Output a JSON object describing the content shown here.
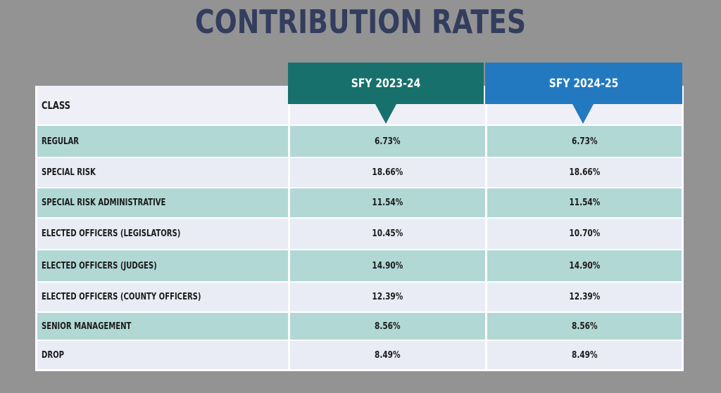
{
  "title": "CONTRIBUTION RATES",
  "columns": {
    "class_header": "CLASS",
    "col1": "SFY 2023-24",
    "col2": "SFY 2024-25"
  },
  "colors": {
    "background": "#939393",
    "title": "#333d5e",
    "col1_header": "#17706c",
    "col2_header": "#2279c0",
    "row_teal": "#b1d8d4",
    "row_light": "#e9ebf5"
  },
  "rows": [
    {
      "class": "REGULAR",
      "sfy_2023_24": "6.73%",
      "sfy_2024_25": "6.73%"
    },
    {
      "class": "SPECIAL RISK",
      "sfy_2023_24": "18.66%",
      "sfy_2024_25": "18.66%"
    },
    {
      "class": "SPECIAL RISK ADMINISTRATIVE",
      "sfy_2023_24": "11.54%",
      "sfy_2024_25": "11.54%"
    },
    {
      "class": "ELECTED OFFICERS (LEGISLATORS)",
      "sfy_2023_24": "10.45%",
      "sfy_2024_25": "10.70%"
    },
    {
      "class": "ELECTED OFFICERS (JUDGES)",
      "sfy_2023_24": "14.90%",
      "sfy_2024_25": "14.90%"
    },
    {
      "class": "ELECTED OFFICERS (COUNTY OFFICERS)",
      "sfy_2023_24": "12.39%",
      "sfy_2024_25": "12.39%"
    },
    {
      "class": "SENIOR MANAGEMENT",
      "sfy_2023_24": "8.56%",
      "sfy_2024_25": "8.56%"
    },
    {
      "class": "DROP",
      "sfy_2023_24": "8.49%",
      "sfy_2024_25": "8.49%"
    }
  ]
}
